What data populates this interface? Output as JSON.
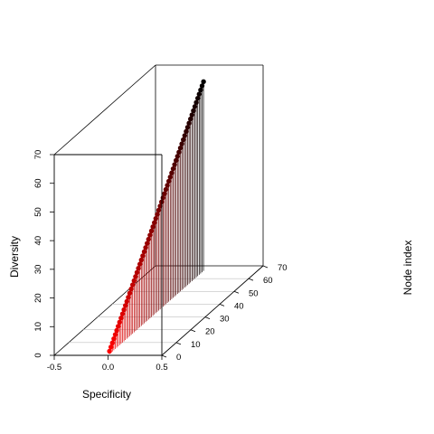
{
  "chart_data": {
    "type": "scatter",
    "subtype": "3d-scatter-with-vertical-drop-lines",
    "title": "",
    "xlabel": "Specificity",
    "ylabel": "Node index",
    "zlabel": "Diversity",
    "xlim": [
      -0.5,
      0.5
    ],
    "ylim": [
      0,
      70
    ],
    "zlim": [
      0,
      70
    ],
    "x_ticks": [
      "-0.5",
      "0.0",
      "0.5"
    ],
    "y_ticks": [
      "0",
      "10",
      "20",
      "30",
      "40",
      "50",
      "60",
      "70"
    ],
    "z_ticks": [
      "0",
      "10",
      "20",
      "30",
      "40",
      "50",
      "60",
      "70"
    ],
    "grid": true,
    "colors": {
      "low": "#ff0000",
      "high": "#000000",
      "box": "#000000",
      "grid": "#bfbfbf"
    },
    "color_encoding": "point color graded from red (low Diversity) to black (high Diversity)",
    "points": {
      "x": 0.0,
      "y_start": 1,
      "y_end": 66,
      "y_step": 1,
      "z_equals_y": true
    }
  }
}
